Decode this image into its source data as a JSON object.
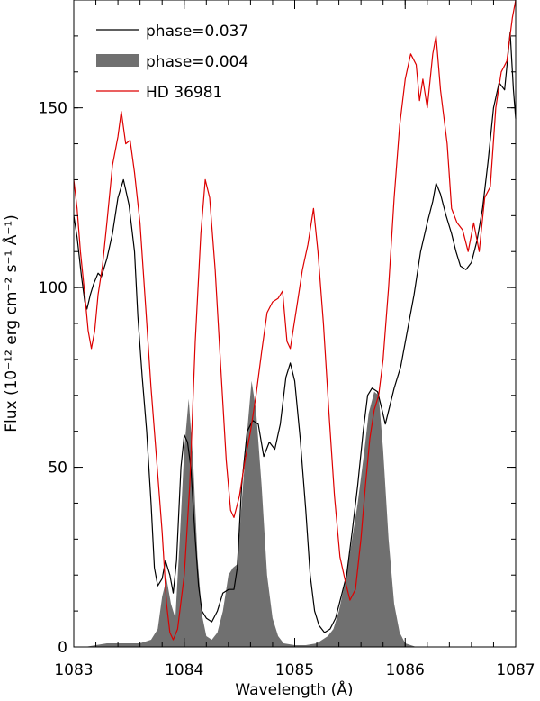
{
  "chart_data": {
    "type": "line",
    "xlabel": "Wavelength (Å)",
    "ylabel": "Flux  (10⁻¹² erg cm⁻² s⁻¹ Å⁻¹)",
    "xlim": [
      1083,
      1087
    ],
    "ylim": [
      0,
      180
    ],
    "xticks": [
      1083,
      1084,
      1085,
      1086,
      1087
    ],
    "yticks": [
      0,
      50,
      100,
      150
    ],
    "x_tick_labels": [
      "1083",
      "1084",
      "1085",
      "1086",
      "1087"
    ],
    "y_tick_labels": [
      "0",
      "50",
      "100",
      "150"
    ],
    "grid": false,
    "legend_position": "top-left",
    "series": [
      {
        "name": "phase=0.037",
        "style": "line",
        "color": "#000000",
        "points": [
          [
            1083.0,
            120
          ],
          [
            1083.03,
            114
          ],
          [
            1083.07,
            103
          ],
          [
            1083.1,
            96
          ],
          [
            1083.12,
            94
          ],
          [
            1083.15,
            98
          ],
          [
            1083.18,
            101
          ],
          [
            1083.22,
            104
          ],
          [
            1083.25,
            103
          ],
          [
            1083.3,
            108
          ],
          [
            1083.35,
            115
          ],
          [
            1083.4,
            125
          ],
          [
            1083.45,
            130
          ],
          [
            1083.5,
            123
          ],
          [
            1083.55,
            110
          ],
          [
            1083.58,
            92
          ],
          [
            1083.62,
            75
          ],
          [
            1083.66,
            60
          ],
          [
            1083.7,
            40
          ],
          [
            1083.73,
            22
          ],
          [
            1083.76,
            17
          ],
          [
            1083.8,
            19
          ],
          [
            1083.83,
            24
          ],
          [
            1083.87,
            20
          ],
          [
            1083.9,
            15
          ],
          [
            1083.93,
            24
          ],
          [
            1083.97,
            50
          ],
          [
            1084.0,
            59
          ],
          [
            1084.03,
            57
          ],
          [
            1084.06,
            50
          ],
          [
            1084.1,
            30
          ],
          [
            1084.13,
            17
          ],
          [
            1084.16,
            10
          ],
          [
            1084.2,
            8
          ],
          [
            1084.25,
            7
          ],
          [
            1084.3,
            10
          ],
          [
            1084.35,
            15
          ],
          [
            1084.4,
            16
          ],
          [
            1084.45,
            16
          ],
          [
            1084.48,
            22
          ],
          [
            1084.52,
            45
          ],
          [
            1084.57,
            60
          ],
          [
            1084.62,
            63
          ],
          [
            1084.67,
            62
          ],
          [
            1084.72,
            53
          ],
          [
            1084.77,
            57
          ],
          [
            1084.82,
            55
          ],
          [
            1084.87,
            62
          ],
          [
            1084.92,
            75
          ],
          [
            1084.96,
            79
          ],
          [
            1085.0,
            74
          ],
          [
            1085.05,
            58
          ],
          [
            1085.1,
            38
          ],
          [
            1085.14,
            20
          ],
          [
            1085.18,
            10
          ],
          [
            1085.22,
            6
          ],
          [
            1085.27,
            4
          ],
          [
            1085.32,
            5
          ],
          [
            1085.37,
            8
          ],
          [
            1085.42,
            14
          ],
          [
            1085.47,
            20
          ],
          [
            1085.52,
            32
          ],
          [
            1085.57,
            45
          ],
          [
            1085.62,
            60
          ],
          [
            1085.66,
            70
          ],
          [
            1085.7,
            72
          ],
          [
            1085.75,
            71
          ],
          [
            1085.79,
            66
          ],
          [
            1085.82,
            62
          ],
          [
            1085.9,
            72
          ],
          [
            1085.96,
            78
          ],
          [
            1086.02,
            88
          ],
          [
            1086.08,
            98
          ],
          [
            1086.14,
            110
          ],
          [
            1086.2,
            118
          ],
          [
            1086.25,
            124
          ],
          [
            1086.28,
            129
          ],
          [
            1086.32,
            126
          ],
          [
            1086.37,
            120
          ],
          [
            1086.42,
            115
          ],
          [
            1086.46,
            110
          ],
          [
            1086.5,
            106
          ],
          [
            1086.55,
            105
          ],
          [
            1086.6,
            107
          ],
          [
            1086.65,
            113
          ],
          [
            1086.7,
            122
          ],
          [
            1086.75,
            135
          ],
          [
            1086.8,
            150
          ],
          [
            1086.85,
            157
          ],
          [
            1086.9,
            155
          ],
          [
            1086.95,
            171
          ],
          [
            1086.98,
            155
          ],
          [
            1087.0,
            147
          ]
        ]
      },
      {
        "name": "phase=0.004",
        "style": "filled",
        "color": "#707070",
        "points": [
          [
            1083.0,
            0
          ],
          [
            1083.1,
            0
          ],
          [
            1083.2,
            0.5
          ],
          [
            1083.3,
            1
          ],
          [
            1083.4,
            1
          ],
          [
            1083.5,
            1
          ],
          [
            1083.6,
            1
          ],
          [
            1083.7,
            2
          ],
          [
            1083.76,
            5
          ],
          [
            1083.8,
            14
          ],
          [
            1083.84,
            19
          ],
          [
            1083.88,
            12
          ],
          [
            1083.92,
            8
          ],
          [
            1083.96,
            30
          ],
          [
            1084.0,
            55
          ],
          [
            1084.04,
            69
          ],
          [
            1084.08,
            52
          ],
          [
            1084.12,
            25
          ],
          [
            1084.16,
            9
          ],
          [
            1084.2,
            3
          ],
          [
            1084.25,
            2
          ],
          [
            1084.3,
            4
          ],
          [
            1084.35,
            10
          ],
          [
            1084.4,
            20
          ],
          [
            1084.44,
            22
          ],
          [
            1084.48,
            23
          ],
          [
            1084.52,
            40
          ],
          [
            1084.57,
            60
          ],
          [
            1084.61,
            74
          ],
          [
            1084.65,
            66
          ],
          [
            1084.7,
            45
          ],
          [
            1084.75,
            20
          ],
          [
            1084.8,
            8
          ],
          [
            1084.85,
            3
          ],
          [
            1084.9,
            1
          ],
          [
            1085.0,
            0.5
          ],
          [
            1085.1,
            0.5
          ],
          [
            1085.2,
            1
          ],
          [
            1085.3,
            3
          ],
          [
            1085.35,
            5
          ],
          [
            1085.4,
            10
          ],
          [
            1085.47,
            20
          ],
          [
            1085.52,
            30
          ],
          [
            1085.57,
            40
          ],
          [
            1085.62,
            52
          ],
          [
            1085.67,
            65
          ],
          [
            1085.72,
            71
          ],
          [
            1085.76,
            70
          ],
          [
            1085.8,
            55
          ],
          [
            1085.85,
            30
          ],
          [
            1085.9,
            12
          ],
          [
            1085.95,
            4
          ],
          [
            1086.0,
            1
          ],
          [
            1086.1,
            0
          ],
          [
            1086.2,
            0
          ],
          [
            1087.0,
            0
          ]
        ]
      },
      {
        "name": "HD 36981",
        "style": "line",
        "color": "#dd0000",
        "points": [
          [
            1083.0,
            130
          ],
          [
            1083.03,
            122
          ],
          [
            1083.06,
            110
          ],
          [
            1083.1,
            98
          ],
          [
            1083.13,
            88
          ],
          [
            1083.16,
            83
          ],
          [
            1083.19,
            88
          ],
          [
            1083.22,
            98
          ],
          [
            1083.26,
            106
          ],
          [
            1083.3,
            118
          ],
          [
            1083.35,
            134
          ],
          [
            1083.4,
            142
          ],
          [
            1083.43,
            149
          ],
          [
            1083.47,
            140
          ],
          [
            1083.51,
            141
          ],
          [
            1083.55,
            132
          ],
          [
            1083.6,
            118
          ],
          [
            1083.65,
            95
          ],
          [
            1083.7,
            72
          ],
          [
            1083.75,
            52
          ],
          [
            1083.8,
            32
          ],
          [
            1083.84,
            12
          ],
          [
            1083.87,
            4
          ],
          [
            1083.9,
            2
          ],
          [
            1083.94,
            5
          ],
          [
            1084.0,
            20
          ],
          [
            1084.05,
            45
          ],
          [
            1084.1,
            85
          ],
          [
            1084.15,
            115
          ],
          [
            1084.19,
            130
          ],
          [
            1084.23,
            125
          ],
          [
            1084.28,
            105
          ],
          [
            1084.33,
            78
          ],
          [
            1084.38,
            52
          ],
          [
            1084.42,
            38
          ],
          [
            1084.45,
            36
          ],
          [
            1084.5,
            42
          ],
          [
            1084.55,
            52
          ],
          [
            1084.6,
            60
          ],
          [
            1084.65,
            70
          ],
          [
            1084.7,
            82
          ],
          [
            1084.75,
            93
          ],
          [
            1084.8,
            96
          ],
          [
            1084.85,
            97
          ],
          [
            1084.89,
            99
          ],
          [
            1084.93,
            85
          ],
          [
            1084.96,
            83
          ],
          [
            1085.02,
            95
          ],
          [
            1085.07,
            105
          ],
          [
            1085.12,
            112
          ],
          [
            1085.17,
            122
          ],
          [
            1085.21,
            110
          ],
          [
            1085.26,
            90
          ],
          [
            1085.31,
            65
          ],
          [
            1085.36,
            42
          ],
          [
            1085.41,
            25
          ],
          [
            1085.46,
            18
          ],
          [
            1085.5,
            13
          ],
          [
            1085.55,
            16
          ],
          [
            1085.6,
            30
          ],
          [
            1085.64,
            45
          ],
          [
            1085.68,
            58
          ],
          [
            1085.72,
            66
          ],
          [
            1085.76,
            70
          ],
          [
            1085.8,
            80
          ],
          [
            1085.85,
            100
          ],
          [
            1085.9,
            125
          ],
          [
            1085.95,
            145
          ],
          [
            1086.0,
            158
          ],
          [
            1086.05,
            165
          ],
          [
            1086.1,
            162
          ],
          [
            1086.13,
            152
          ],
          [
            1086.16,
            158
          ],
          [
            1086.2,
            150
          ],
          [
            1086.25,
            165
          ],
          [
            1086.28,
            170
          ],
          [
            1086.32,
            155
          ],
          [
            1086.38,
            140
          ],
          [
            1086.42,
            122
          ],
          [
            1086.47,
            118
          ],
          [
            1086.52,
            116
          ],
          [
            1086.57,
            110
          ],
          [
            1086.62,
            118
          ],
          [
            1086.67,
            110
          ],
          [
            1086.72,
            125
          ],
          [
            1086.77,
            128
          ],
          [
            1086.82,
            150
          ],
          [
            1086.87,
            160
          ],
          [
            1086.92,
            163
          ],
          [
            1086.97,
            175
          ],
          [
            1087.0,
            180
          ]
        ]
      }
    ]
  }
}
